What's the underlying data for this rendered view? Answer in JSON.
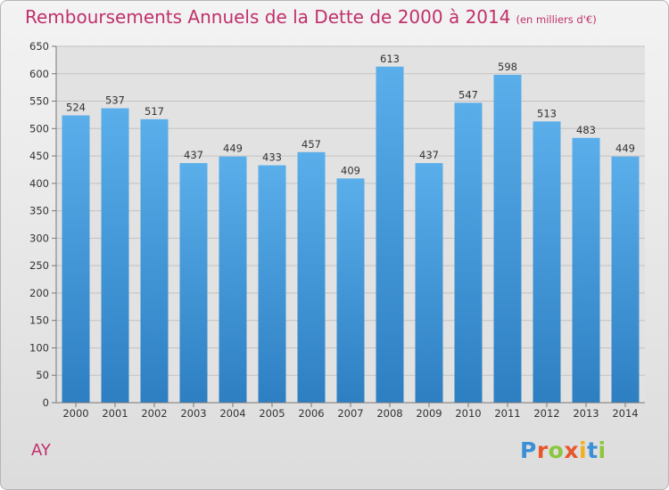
{
  "chart_data": {
    "type": "bar",
    "title": "Remboursements Annuels de la Dette de 2000 à 2014",
    "subtitle": "(en milliers d'€)",
    "categories": [
      "2000",
      "2001",
      "2002",
      "2003",
      "2004",
      "2005",
      "2006",
      "2007",
      "2008",
      "2009",
      "2010",
      "2011",
      "2012",
      "2013",
      "2014"
    ],
    "values": [
      524,
      537,
      517,
      437,
      449,
      433,
      457,
      409,
      613,
      437,
      547,
      598,
      513,
      483,
      449
    ],
    "ylim": [
      0,
      650
    ],
    "yticks": [
      0,
      50,
      100,
      150,
      200,
      250,
      300,
      350,
      400,
      450,
      500,
      550,
      600,
      650
    ],
    "grid": true,
    "bar_color": "#4a9fe0"
  },
  "commune": "AY",
  "logo": {
    "letters": [
      {
        "ch": "P",
        "color": "#3a8fd6"
      },
      {
        "ch": "r",
        "color": "#e8572a"
      },
      {
        "ch": "o",
        "color": "#8cc63f"
      },
      {
        "ch": "x",
        "color": "#e8572a"
      },
      {
        "ch": "i",
        "color": "#f2b01e"
      },
      {
        "ch": "t",
        "color": "#3a8fd6"
      },
      {
        "ch": "i",
        "color": "#8cc63f"
      }
    ]
  }
}
